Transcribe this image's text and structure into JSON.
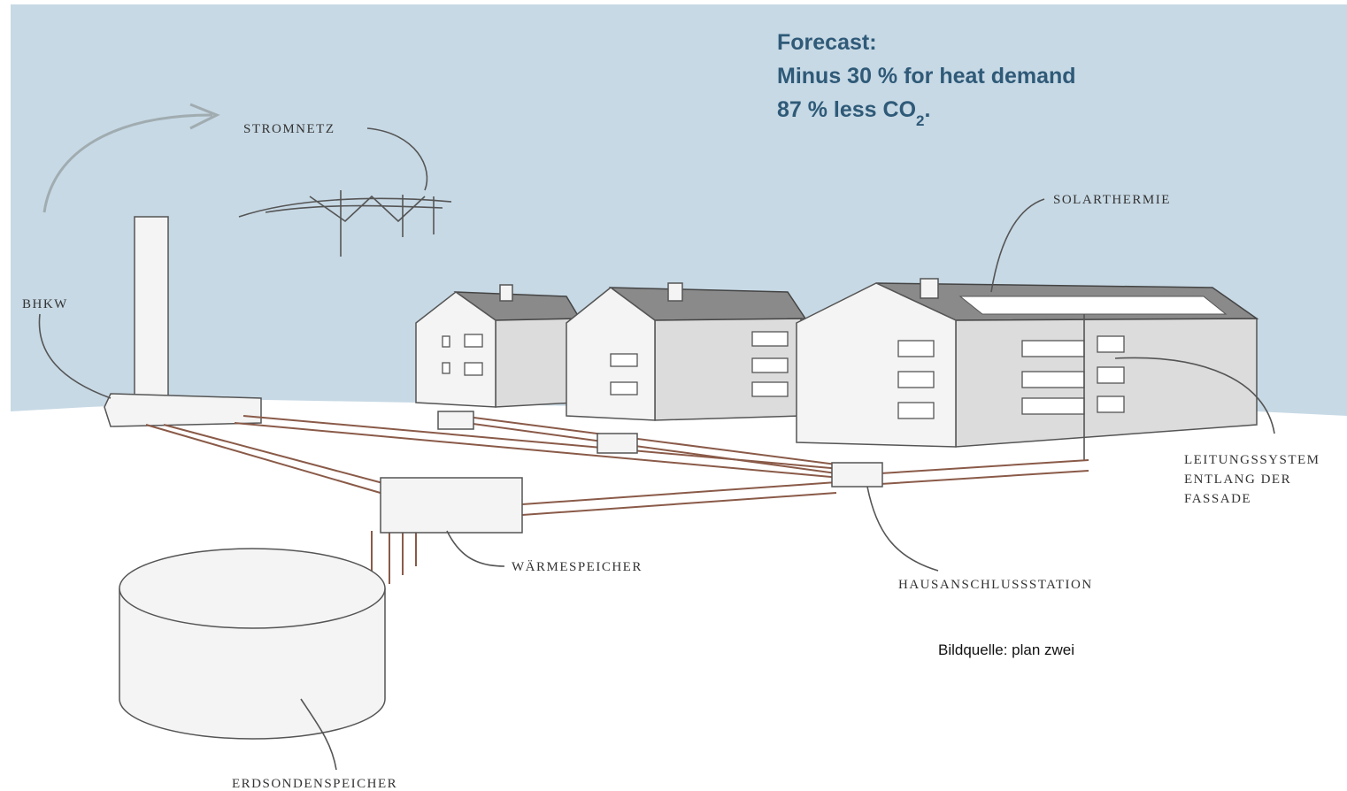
{
  "forecast": {
    "title": "Forecast:",
    "line1": "Minus 30 % for heat demand",
    "line2": {
      "text": "87 % less CO",
      "sub": "2",
      "after": "."
    }
  },
  "labels": {
    "stromnetz": "STROMNETZ",
    "bhkw": "BHKW",
    "solarthermie": "SOLARTHERMIE",
    "leitungssystem": [
      "LEITUNGSSYSTEM",
      "ENTLANG DER",
      "FASSADE"
    ],
    "waermespeicher": "WÄRMESPEICHER",
    "hausanschlussstation": "HAUSANSCHLUSSSTATION",
    "erdsondenspeicher": "ERDSONDENSPEICHER"
  },
  "source": "Bildquelle: plan zwei"
}
